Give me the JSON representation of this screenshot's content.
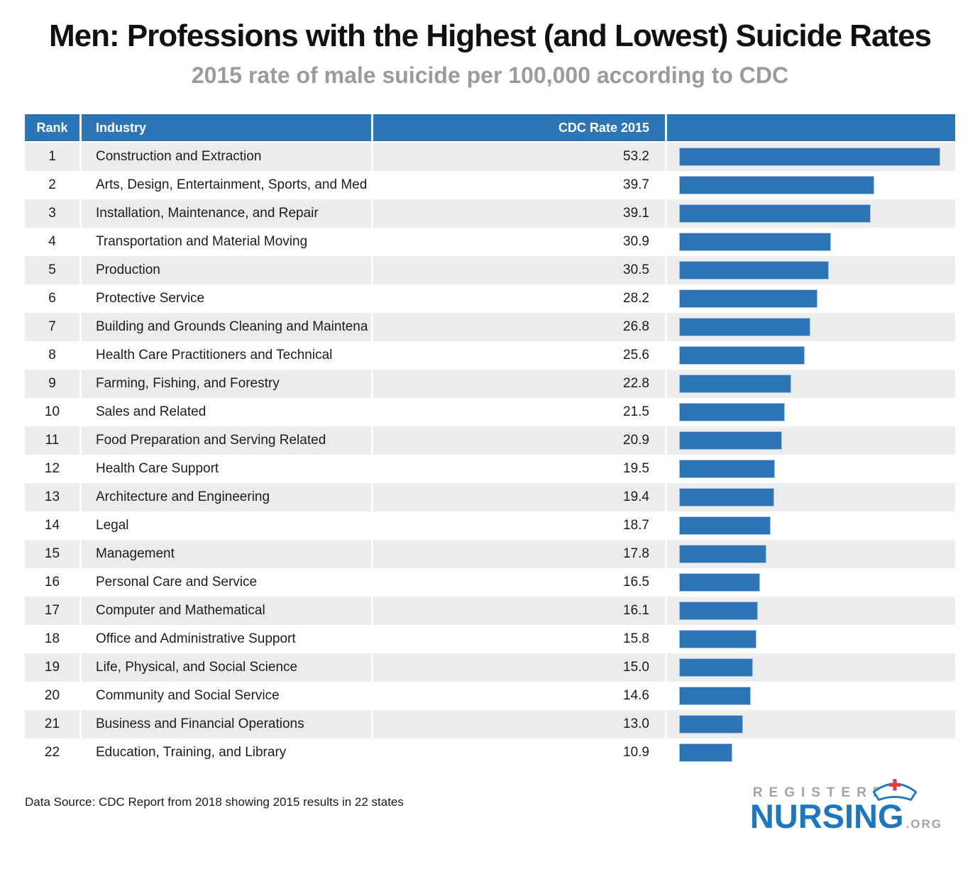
{
  "header": {
    "title": "Men: Professions with the Highest (and Lowest) Suicide Rates",
    "subtitle": "2015 rate of male suicide per 100,000 according to CDC"
  },
  "table": {
    "columns": [
      "Rank",
      "Industry",
      "CDC Rate 2015"
    ]
  },
  "chart_data": {
    "type": "bar",
    "orientation": "horizontal",
    "title": "Men: Professions with the Highest (and Lowest) Suicide Rates",
    "subtitle": "2015 rate of male suicide per 100,000 according to CDC",
    "xlabel": "CDC Rate 2015",
    "ylabel": "Industry",
    "xlim": [
      0,
      53.2
    ],
    "grid": false,
    "legend": false,
    "bar_color": "#2e75b6",
    "ranks": [
      1,
      2,
      3,
      4,
      5,
      6,
      7,
      8,
      9,
      10,
      11,
      12,
      13,
      14,
      15,
      16,
      17,
      18,
      19,
      20,
      21,
      22
    ],
    "categories": [
      "Construction and Extraction",
      "Arts, Design, Entertainment, Sports, and Med",
      "Installation, Maintenance, and Repair",
      "Transportation and Material Moving",
      "Production",
      "Protective Service",
      "Building and Grounds Cleaning and Maintena",
      "Health Care Practitioners and Technical",
      "Farming, Fishing, and Forestry",
      "Sales and Related",
      "Food Preparation and Serving Related",
      "Health Care Support",
      "Architecture and Engineering",
      "Legal",
      "Management",
      "Personal Care and Service",
      "Computer and Mathematical",
      "Office and Administrative Support",
      "Life, Physical, and Social Science",
      "Community and Social Service",
      "Business and Financial Operations",
      "Education, Training, and Library"
    ],
    "values": [
      53.2,
      39.7,
      39.1,
      30.9,
      30.5,
      28.2,
      26.8,
      25.6,
      22.8,
      21.5,
      20.9,
      19.5,
      19.4,
      18.7,
      17.8,
      16.5,
      16.1,
      15.8,
      15.0,
      14.6,
      13.0,
      10.9
    ],
    "value_labels": [
      "53.2",
      "39.7",
      "39.1",
      "30.9",
      "30.5",
      "28.2",
      "26.8",
      "25.6",
      "22.8",
      "21.5",
      "20.9",
      "19.5",
      "19.4",
      "18.7",
      "17.8",
      "16.5",
      "16.1",
      "15.8",
      "15.0",
      "14.6",
      "13.0",
      "10.9"
    ]
  },
  "footer": {
    "source": "Data Source: CDC Report from 2018 showing 2015 results in 22 states"
  },
  "logo": {
    "line1": "REGISTERED",
    "line2": "NURSING",
    "suffix": ".ORG"
  },
  "colors": {
    "accent_blue": "#2e75b6",
    "row_stripe": "#ececec",
    "logo_blue": "#1b77c0",
    "cross_red": "#e23b3f",
    "subtitle_gray": "#9b9b9b"
  }
}
